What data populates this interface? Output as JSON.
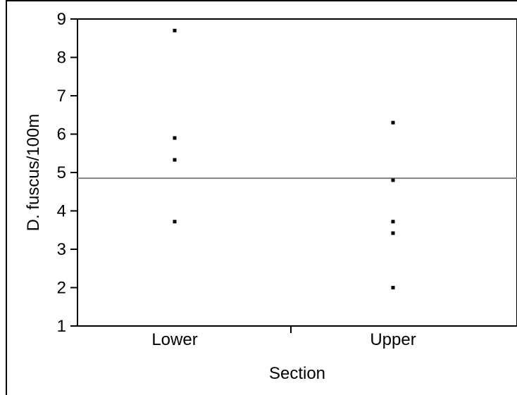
{
  "chart_data": {
    "type": "scatter",
    "xlabel": "Section",
    "ylabel": "D. fuscus/100m",
    "categories": [
      "Lower",
      "Upper"
    ],
    "ylim": [
      1,
      9
    ],
    "yticks": [
      1,
      2,
      3,
      4,
      5,
      6,
      7,
      8,
      9
    ],
    "grid": false,
    "reference_line": 4.85,
    "colors": {
      "points": "#000000",
      "reference_line": "#808080",
      "axes": "#000000"
    },
    "series": [
      {
        "points": [
          {
            "x": "Lower",
            "y": 8.7
          },
          {
            "x": "Lower",
            "y": 5.9
          },
          {
            "x": "Lower",
            "y": 5.33
          },
          {
            "x": "Lower",
            "y": 3.72
          },
          {
            "x": "Upper",
            "y": 6.3
          },
          {
            "x": "Upper",
            "y": 4.8
          },
          {
            "x": "Upper",
            "y": 3.72
          },
          {
            "x": "Upper",
            "y": 3.42
          },
          {
            "x": "Upper",
            "y": 2.0
          }
        ]
      }
    ]
  }
}
